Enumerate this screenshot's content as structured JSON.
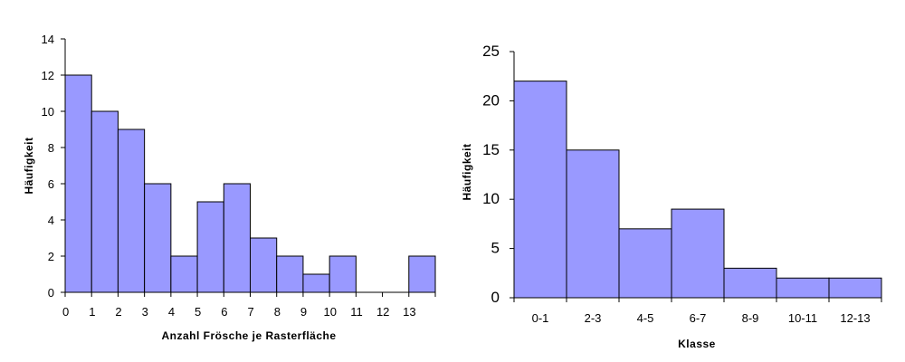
{
  "chart_data": [
    {
      "type": "bar",
      "categories": [
        "0",
        "1",
        "2",
        "3",
        "4",
        "5",
        "6",
        "7",
        "8",
        "9",
        "10",
        "11",
        "12",
        "13"
      ],
      "values": [
        12,
        10,
        9,
        6,
        2,
        5,
        6,
        3,
        2,
        1,
        2,
        0,
        0,
        2
      ],
      "yticks": [
        "0",
        "2",
        "4",
        "6",
        "8",
        "10",
        "12",
        "14"
      ],
      "xlabel": "Anzahl Frösche je Rasterfläche",
      "ylabel": "Häufigkeit",
      "ylim": [
        0,
        14
      ],
      "grid": false,
      "bar_color": "#9999ff"
    },
    {
      "type": "bar",
      "categories": [
        "0-1",
        "2-3",
        "4-5",
        "6-7",
        "8-9",
        "10-11",
        "12-13"
      ],
      "values": [
        22,
        15,
        7,
        9,
        3,
        2,
        2
      ],
      "yticks": [
        "0",
        "5",
        "10",
        "15",
        "20",
        "25"
      ],
      "xlabel": "Klasse",
      "ylabel": "Häufigkeit",
      "ylim": [
        0,
        25
      ],
      "grid": false,
      "bar_color": "#9999ff"
    }
  ]
}
